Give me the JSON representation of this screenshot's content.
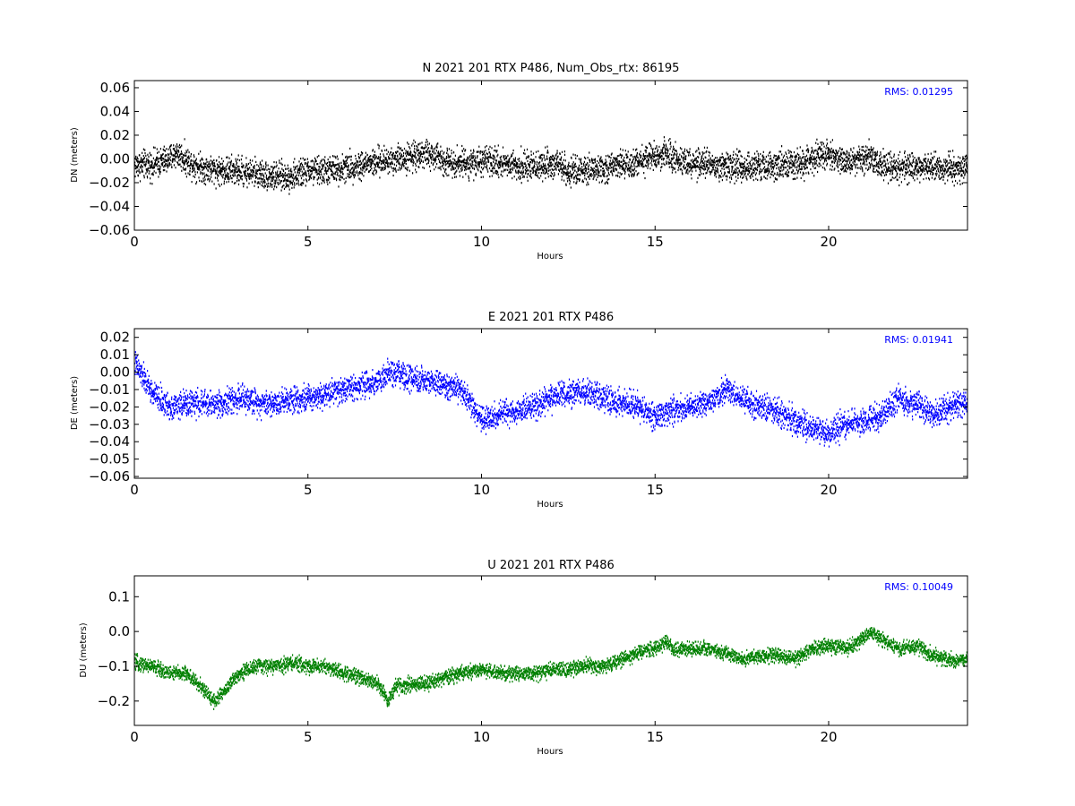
{
  "chart_data": [
    {
      "type": "scatter",
      "title": "N 2021 201 RTX  P486, Num_Obs_rtx: 86195",
      "xlabel": "Hours",
      "ylabel": "DN (meters)",
      "xlim": [
        0,
        24
      ],
      "ylim": [
        -0.06,
        0.066
      ],
      "x_ticks": [
        "0",
        "5",
        "10",
        "15",
        "20"
      ],
      "y_ticks": [
        "0.06",
        "0.04",
        "0.02",
        "0.00",
        "−0.02",
        "−0.04",
        "−0.06"
      ],
      "annotation": "RMS:  0.01295",
      "annotation_color": "#0000ff",
      "color": "#000000",
      "grid": false,
      "series": [
        {
          "x": [
            0,
            0.5,
            1,
            1.2,
            1.5,
            2,
            2.5,
            3,
            3.5,
            4,
            4.5,
            5,
            5.5,
            6,
            6.5,
            7,
            7.5,
            8,
            8.2,
            8.5,
            9,
            9.5,
            10,
            10.5,
            11,
            11.5,
            12,
            12.3,
            12.5,
            13,
            13.5,
            14,
            14.5,
            15,
            15.3,
            15.5,
            16,
            16.5,
            17,
            17.5,
            18,
            18.5,
            19,
            19.5,
            19.8,
            20,
            20.5,
            21,
            21.2,
            21.5,
            22,
            22.5,
            23,
            23.5,
            24
          ],
          "y": [
            -0.005,
            -0.005,
            0.0,
            0.005,
            -0.002,
            -0.008,
            -0.01,
            -0.01,
            -0.012,
            -0.015,
            -0.015,
            -0.01,
            -0.01,
            -0.008,
            -0.005,
            -0.003,
            0.0,
            0.002,
            0.005,
            0.003,
            -0.002,
            -0.003,
            -0.003,
            -0.003,
            -0.005,
            -0.007,
            -0.003,
            -0.005,
            -0.012,
            -0.01,
            -0.008,
            -0.006,
            -0.002,
            0.003,
            0.005,
            0.0,
            -0.004,
            -0.005,
            -0.005,
            -0.007,
            -0.005,
            -0.005,
            -0.004,
            0.0,
            0.003,
            0.002,
            -0.002,
            0.0,
            0.002,
            -0.005,
            -0.008,
            -0.008,
            -0.007,
            -0.008,
            -0.008
          ]
        }
      ]
    },
    {
      "type": "scatter",
      "title": "E 2021 201 RTX  P486",
      "xlabel": "Hours",
      "ylabel": "DE (meters)",
      "xlim": [
        0,
        24
      ],
      "ylim": [
        -0.061,
        0.025
      ],
      "x_ticks": [
        "0",
        "5",
        "10",
        "15",
        "20"
      ],
      "y_ticks": [
        "0.02",
        "0.01",
        "0.00",
        "−0.01",
        "−0.02",
        "−0.03",
        "−0.04",
        "−0.05",
        "−0.06"
      ],
      "annotation": "RMS:  0.01941",
      "annotation_color": "#0000ff",
      "color": "#0000ff",
      "grid": false,
      "series": [
        {
          "x": [
            0,
            0.3,
            0.5,
            1,
            1.5,
            2,
            2.5,
            3,
            3.5,
            4,
            4.5,
            5,
            5.5,
            6,
            6.5,
            7,
            7.5,
            8,
            8.5,
            9,
            9.5,
            9.8,
            10,
            10.5,
            11,
            11.5,
            12,
            12.5,
            13,
            13.5,
            14,
            14.5,
            15,
            15.5,
            16,
            16.5,
            17,
            17.5,
            18,
            18.5,
            19,
            19.5,
            20,
            20.5,
            21,
            21.5,
            22,
            22.5,
            23,
            23.5,
            24
          ],
          "y": [
            0.005,
            -0.005,
            -0.012,
            -0.02,
            -0.018,
            -0.018,
            -0.018,
            -0.015,
            -0.017,
            -0.018,
            -0.015,
            -0.015,
            -0.012,
            -0.01,
            -0.008,
            -0.005,
            0.0,
            -0.005,
            -0.005,
            -0.008,
            -0.012,
            -0.022,
            -0.028,
            -0.025,
            -0.022,
            -0.02,
            -0.015,
            -0.012,
            -0.012,
            -0.015,
            -0.018,
            -0.02,
            -0.025,
            -0.022,
            -0.02,
            -0.018,
            -0.01,
            -0.015,
            -0.02,
            -0.022,
            -0.028,
            -0.032,
            -0.035,
            -0.03,
            -0.028,
            -0.025,
            -0.015,
            -0.018,
            -0.025,
            -0.02,
            -0.018
          ]
        }
      ]
    },
    {
      "type": "scatter",
      "title": "U 2021 201 RTX  P486",
      "xlabel": "Hours",
      "ylabel": "DU (meters)",
      "xlim": [
        0,
        24
      ],
      "ylim": [
        -0.27,
        0.16
      ],
      "x_ticks": [
        "0",
        "5",
        "10",
        "15",
        "20"
      ],
      "y_ticks": [
        "0.1",
        "0.0",
        "−0.1",
        "−0.2"
      ],
      "annotation": "RMS:  0.10049",
      "annotation_color": "#0000ff",
      "color": "#008000",
      "grid": false,
      "series": [
        {
          "x": [
            0,
            0.5,
            1,
            1.5,
            2,
            2.3,
            2.5,
            3,
            3.5,
            4,
            4.5,
            5,
            5.5,
            6,
            6.5,
            7,
            7.3,
            7.5,
            8,
            8.5,
            9,
            9.5,
            10,
            10.5,
            11,
            11.5,
            12,
            12.5,
            13,
            13.5,
            14,
            14.5,
            15,
            15.3,
            15.5,
            16,
            16.5,
            17,
            17.5,
            18,
            18.5,
            19,
            19.5,
            20,
            20.5,
            21,
            21.2,
            21.5,
            22,
            22.5,
            23,
            23.5,
            24
          ],
          "y": [
            -0.09,
            -0.1,
            -0.12,
            -0.12,
            -0.17,
            -0.2,
            -0.18,
            -0.12,
            -0.1,
            -0.1,
            -0.09,
            -0.1,
            -0.1,
            -0.12,
            -0.13,
            -0.15,
            -0.2,
            -0.16,
            -0.15,
            -0.15,
            -0.13,
            -0.12,
            -0.11,
            -0.12,
            -0.12,
            -0.12,
            -0.11,
            -0.11,
            -0.1,
            -0.1,
            -0.08,
            -0.06,
            -0.05,
            -0.03,
            -0.05,
            -0.05,
            -0.05,
            -0.06,
            -0.08,
            -0.07,
            -0.07,
            -0.08,
            -0.05,
            -0.04,
            -0.05,
            -0.02,
            0.0,
            -0.02,
            -0.05,
            -0.04,
            -0.07,
            -0.08,
            -0.08
          ]
        }
      ]
    }
  ]
}
